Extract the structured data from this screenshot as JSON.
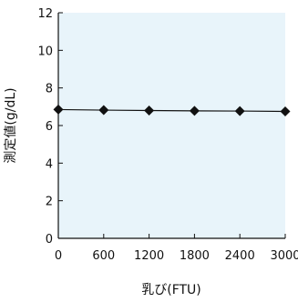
{
  "chart_data": {
    "type": "line",
    "title": "",
    "xlabel": "乳び(FTU)",
    "ylabel": "測定値(g/dL)",
    "x": [
      0,
      600,
      1200,
      1800,
      2400,
      3000
    ],
    "series": [
      {
        "values": [
          6.85,
          6.82,
          6.8,
          6.78,
          6.77,
          6.75
        ]
      }
    ],
    "xlim": [
      0,
      3000
    ],
    "ylim": [
      0,
      12
    ],
    "xticks": [
      "0",
      "600",
      "1200",
      "1800",
      "2400",
      "3000"
    ],
    "yticks": [
      "0",
      "2",
      "4",
      "6",
      "8",
      "10",
      "12"
    ],
    "grid": false,
    "plot_background": "#e8f4fa",
    "line_color": "#111111",
    "marker": "diamond"
  }
}
